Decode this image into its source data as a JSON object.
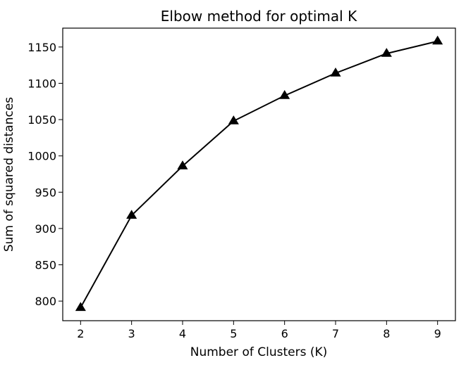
{
  "chart_data": {
    "type": "line",
    "title": "Elbow method for optimal K",
    "xlabel": "Number of Clusters (K)",
    "ylabel": "Sum of squared distances",
    "x": [
      2,
      3,
      4,
      5,
      6,
      7,
      8,
      9
    ],
    "series": [
      {
        "values": [
          791,
          918,
          986,
          1048,
          1083,
          1114,
          1141,
          1158
        ],
        "color": "#000000",
        "marker": "triangle-up"
      }
    ],
    "xticks": [
      "2",
      "3",
      "4",
      "5",
      "6",
      "7",
      "8",
      "9"
    ],
    "yticks": [
      "800",
      "850",
      "900",
      "950",
      "1000",
      "1050",
      "1100",
      "1150"
    ],
    "xlim": [
      1.65,
      9.35
    ],
    "ylim": [
      773,
      1176
    ],
    "grid": false,
    "legend": false
  }
}
